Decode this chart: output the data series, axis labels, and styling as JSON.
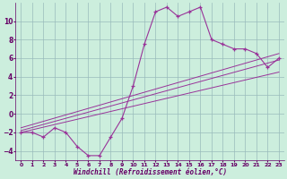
{
  "xlabel": "Windchill (Refroidissement éolien,°C)",
  "bg_color": "#cceedd",
  "line_color": "#993399",
  "grid_color": "#99bbbb",
  "axis_color": "#660066",
  "xlim": [
    -0.5,
    23.5
  ],
  "ylim": [
    -5.0,
    12.0
  ],
  "xticks": [
    0,
    1,
    2,
    3,
    4,
    5,
    6,
    7,
    8,
    9,
    10,
    11,
    12,
    13,
    14,
    15,
    16,
    17,
    18,
    19,
    20,
    21,
    22,
    23
  ],
  "yticks": [
    -4,
    -2,
    0,
    2,
    4,
    6,
    8,
    10
  ],
  "main_x": [
    0,
    1,
    2,
    3,
    4,
    5,
    6,
    7,
    8,
    9,
    10,
    11,
    12,
    13,
    14,
    15,
    16,
    17,
    18,
    19,
    20,
    21,
    22,
    23
  ],
  "main_y": [
    -2,
    -2,
    -2.5,
    -1.5,
    -2,
    -3.5,
    -4.5,
    -4.5,
    -2.5,
    -0.5,
    3,
    7.5,
    11,
    11.5,
    10.5,
    11,
    11.5,
    8,
    7.5,
    7,
    7,
    6.5,
    5,
    6
  ],
  "line1_x": [
    0,
    23
  ],
  "line1_y": [
    -2.0,
    4.5
  ],
  "line2_x": [
    0,
    23
  ],
  "line2_y": [
    -1.8,
    5.8
  ],
  "line3_x": [
    0,
    23
  ],
  "line3_y": [
    -1.5,
    6.5
  ]
}
